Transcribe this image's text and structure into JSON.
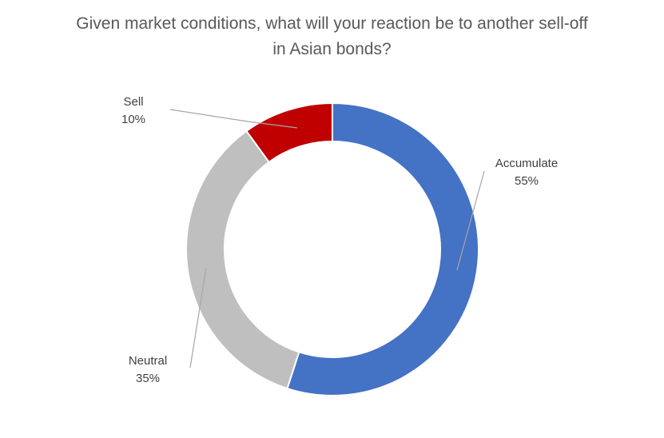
{
  "chart_data": {
    "type": "donut",
    "title": "Given market conditions, what will your reaction be to another sell-off in Asian bonds?",
    "categories": [
      "Accumulate",
      "Neutral",
      "Sell"
    ],
    "values": [
      55,
      35,
      10
    ],
    "value_labels": [
      "55%",
      "35%",
      "10%"
    ],
    "colors": [
      "#4472c4",
      "#bfbfbf",
      "#c00000"
    ]
  }
}
